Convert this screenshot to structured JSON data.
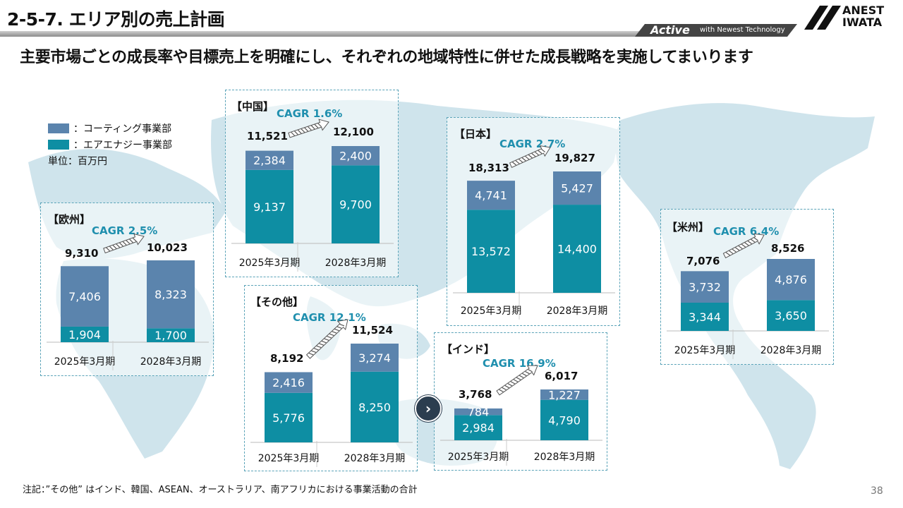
{
  "header": {
    "title": "2-5-7. エリア別の売上計画",
    "tagline_brand": "Active",
    "tagline_text": "with Newest Technology",
    "logo_line1": "ANEST",
    "logo_line2": "IWATA"
  },
  "subtitle": "主要市場ごとの成長率や目標売上を明確にし、それぞれの地域特性に併せた成長戦略を実施してまいります",
  "legend": {
    "items": [
      {
        "label": "：コーティング事業部",
        "color": "#5b84ad"
      },
      {
        "label": "：エアエナジー事業部",
        "color": "#0e8ea3"
      }
    ],
    "unit": "単位：百万円"
  },
  "colors": {
    "coating": "#5b84ad",
    "air_energy": "#0e8ea3",
    "accent": "#1f8fae",
    "map": "#cfe4ec"
  },
  "chart_data": [
    {
      "type": "bar",
      "region": "【欧州】",
      "cagr": "CAGR 2.5%",
      "categories": [
        "2025年3月期",
        "2028年3月期"
      ],
      "series": [
        {
          "name": "エアエナジー事業部",
          "values": [
            1904,
            1700
          ]
        },
        {
          "name": "コーティング事業部",
          "values": [
            7406,
            8323
          ]
        }
      ],
      "totals": [
        9310,
        10023
      ],
      "value_labels": {
        "air": [
          "1,904",
          "1,700"
        ],
        "coating": [
          "7,406",
          "8,323"
        ]
      },
      "total_labels": [
        "9,310",
        "10,023"
      ],
      "ylim": [
        0,
        10023
      ]
    },
    {
      "type": "bar",
      "region": "【中国】",
      "cagr": "CAGR 1.6%",
      "categories": [
        "2025年3月期",
        "2028年3月期"
      ],
      "series": [
        {
          "name": "エアエナジー事業部",
          "values": [
            9137,
            9700
          ]
        },
        {
          "name": "コーティング事業部",
          "values": [
            2384,
            2400
          ]
        }
      ],
      "totals": [
        11521,
        12100
      ],
      "value_labels": {
        "air": [
          "9,137",
          "9,700"
        ],
        "coating": [
          "2,384",
          "2,400"
        ]
      },
      "total_labels": [
        "11,521",
        "12,100"
      ],
      "ylim": [
        0,
        12100
      ]
    },
    {
      "type": "bar",
      "region": "【その他】",
      "cagr": "CAGR 12.1%",
      "categories": [
        "2025年3月期",
        "2028年3月期"
      ],
      "series": [
        {
          "name": "エアエナジー事業部",
          "values": [
            5776,
            8250
          ]
        },
        {
          "name": "コーティング事業部",
          "values": [
            2416,
            3274
          ]
        }
      ],
      "totals": [
        8192,
        11524
      ],
      "value_labels": {
        "air": [
          "5,776",
          "8,250"
        ],
        "coating": [
          "2,416",
          "3,274"
        ]
      },
      "total_labels": [
        "8,192",
        "11,524"
      ],
      "ylim": [
        0,
        11524
      ]
    },
    {
      "type": "bar",
      "region": "【日本】",
      "cagr": "CAGR 2.7%",
      "categories": [
        "2025年3月期",
        "2028年3月期"
      ],
      "series": [
        {
          "name": "エアエナジー事業部",
          "values": [
            13572,
            14400
          ]
        },
        {
          "name": "コーティング事業部",
          "values": [
            4741,
            5427
          ]
        }
      ],
      "totals": [
        18313,
        19827
      ],
      "value_labels": {
        "air": [
          "13,572",
          "14,400"
        ],
        "coating": [
          "4,741",
          "5,427"
        ]
      },
      "total_labels": [
        "18,313",
        "19,827"
      ],
      "ylim": [
        0,
        19827
      ]
    },
    {
      "type": "bar",
      "region": "【インド】",
      "cagr": "CAGR 16.9%",
      "categories": [
        "2025年3月期",
        "2028年3月期"
      ],
      "series": [
        {
          "name": "エアエナジー事業部",
          "values": [
            2984,
            4790
          ]
        },
        {
          "name": "コーティング事業部",
          "values": [
            784,
            1227
          ]
        }
      ],
      "totals": [
        3768,
        6017
      ],
      "value_labels": {
        "air": [
          "2,984",
          "4,790"
        ],
        "coating": [
          "784",
          "1,227"
        ]
      },
      "total_labels": [
        "3,768",
        "6,017"
      ],
      "ylim": [
        0,
        6017
      ]
    },
    {
      "type": "bar",
      "region": "【米州】",
      "cagr": "CAGR 6.4%",
      "categories": [
        "2025年3月期",
        "2028年3月期"
      ],
      "series": [
        {
          "name": "エアエナジー事業部",
          "values": [
            3344,
            3650
          ]
        },
        {
          "name": "コーティング事業部",
          "values": [
            3732,
            4876
          ]
        }
      ],
      "totals": [
        7076,
        8526
      ],
      "value_labels": {
        "air": [
          "3,344",
          "3,650"
        ],
        "coating": [
          "3,732",
          "4,876"
        ]
      },
      "total_labels": [
        "7,076",
        "8,526"
      ],
      "ylim": [
        0,
        8526
      ]
    }
  ],
  "footnote": "注記：”その他” はインド、韓国、ASEAN、オーストラリア、南アフリカにおける事業活動の合計",
  "page_number": "38"
}
